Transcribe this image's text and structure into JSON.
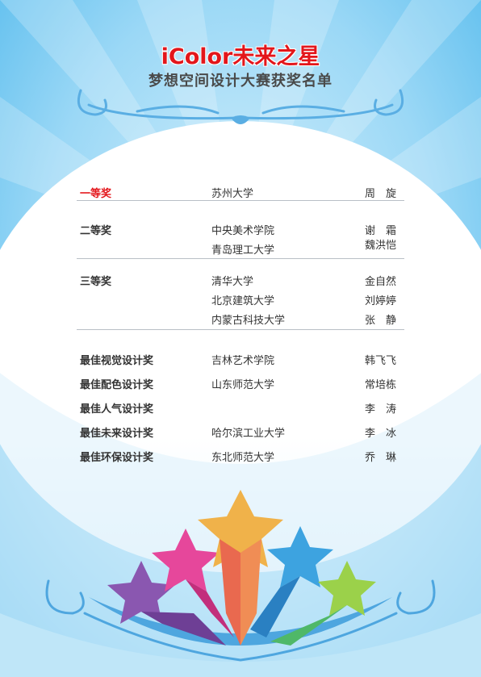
{
  "title": {
    "line1": "iColor未来之星",
    "line2": "梦想空间设计大赛获奖名单"
  },
  "awards": [
    {
      "award": "一等奖",
      "school": "苏州大学",
      "person": "周　旋"
    },
    {
      "award": "二等奖",
      "school": "中央美术学院",
      "person": "谢　霜"
    },
    {
      "award": "",
      "school": "青岛理工大学",
      "person": "魏洪恺"
    },
    {
      "award": "三等奖",
      "school": "清华大学",
      "person": "金自然"
    },
    {
      "award": "",
      "school": "北京建筑大学",
      "person": "刘婷婷"
    },
    {
      "award": "",
      "school": "内蒙古科技大学",
      "person": "张　静"
    },
    {
      "award": "最佳视觉设计奖",
      "school": "吉林艺术学院",
      "person": "韩飞飞"
    },
    {
      "award": "最佳配色设计奖",
      "school": "山东师范大学",
      "person": "常培栋"
    },
    {
      "award": "最佳人气设计奖",
      "school": "",
      "person": "李　涛"
    },
    {
      "award": "最佳未来设计奖",
      "school": "哈尔滨工业大学",
      "person": "李　冰"
    },
    {
      "award": "最佳环保设计奖",
      "school": "东北师范大学",
      "person": "乔　琳"
    }
  ],
  "colors": {
    "first_prize": "#e3161b",
    "background": "#5fc2f0",
    "star_yellow": "#f0b24a",
    "star_pink": "#e6479b",
    "star_blue": "#3da3e0",
    "star_purple": "#8a57b0",
    "star_green": "#9bd14a"
  }
}
